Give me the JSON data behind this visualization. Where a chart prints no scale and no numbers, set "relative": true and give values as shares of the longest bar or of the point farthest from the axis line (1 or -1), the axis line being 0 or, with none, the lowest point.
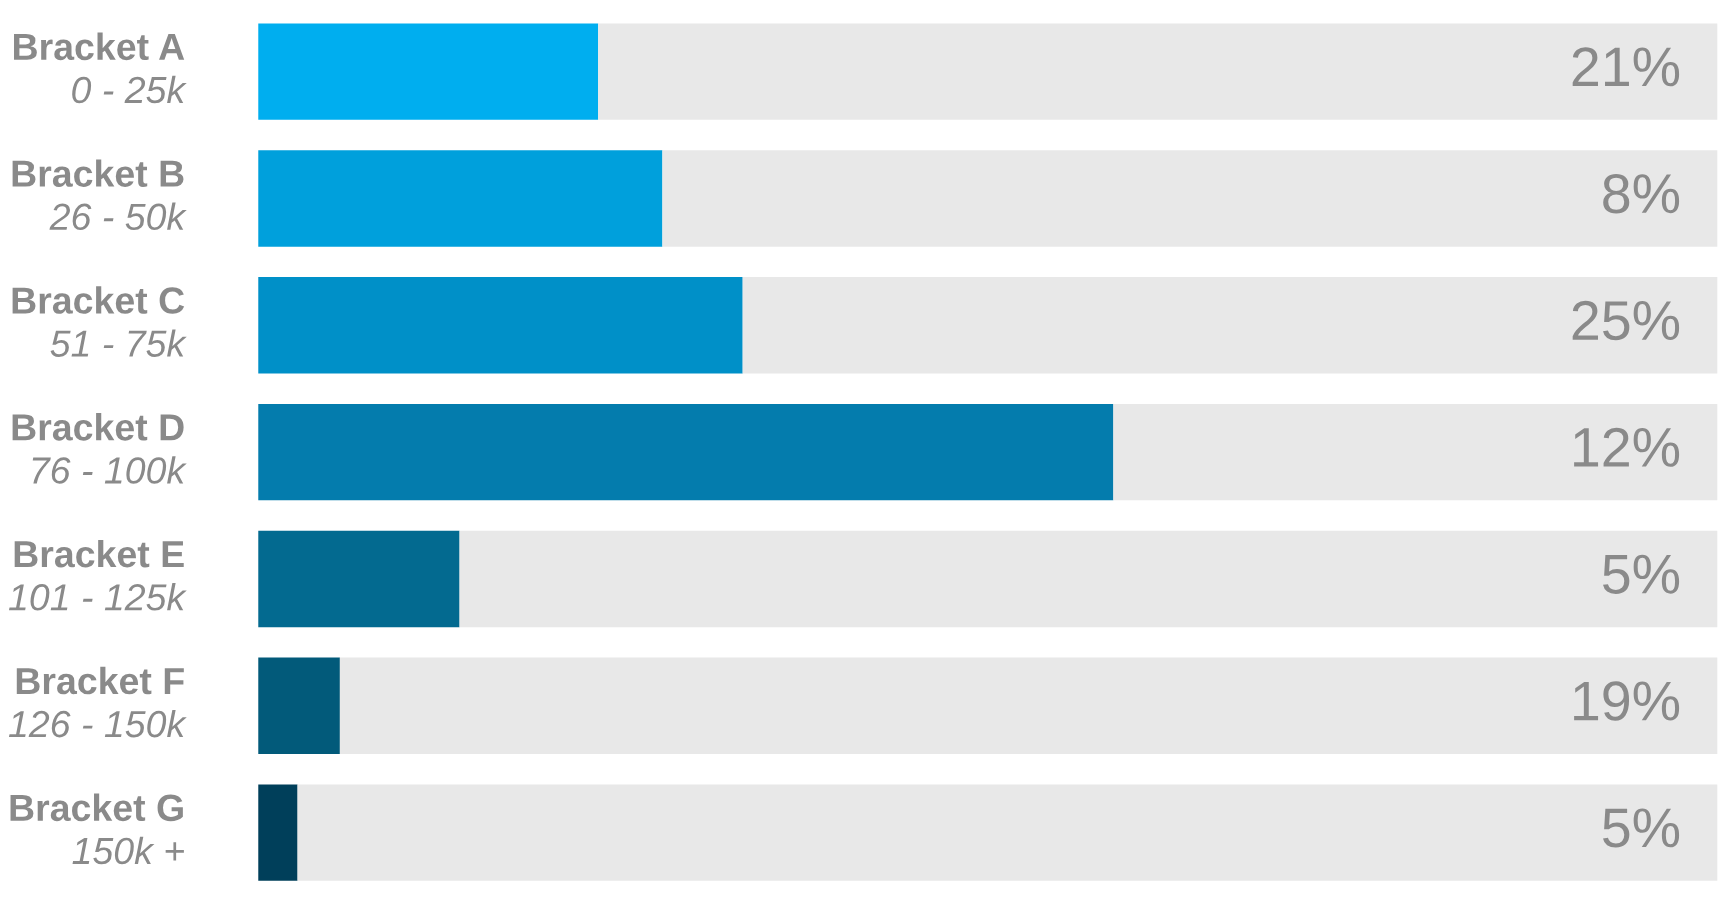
{
  "chart_data": {
    "type": "bar",
    "orientation": "horizontal",
    "stacked": true,
    "relative": true,
    "categories": [
      "Bracket A\n0 - 25k",
      "Bracket B\n26 - 50k",
      "Bracket C\n51 - 75k",
      "Bracket D\n76 - 100k",
      "Bracket E\n101 - 125k",
      "Bracket F\n126 - 150k",
      "Bracket G\n150k +"
    ],
    "series": [
      {
        "colors": [
          "#00aeef",
          "#00a0dc",
          "#0090c8",
          "#047cad",
          "#036a90",
          "#025a7a",
          "#003f5a"
        ],
        "values": [
          0.233,
          0.277,
          0.332,
          0.586,
          0.138,
          0.056,
          0.027
        ]
      },
      {
        "color": "#e8e8e8",
        "values": [
          0.767,
          0.723,
          0.668,
          0.414,
          0.862,
          0.944,
          0.973
        ]
      }
    ],
    "annotations": [
      "21%",
      "8%",
      "25%",
      "12%",
      "5%",
      "19%",
      "5%"
    ]
  }
}
